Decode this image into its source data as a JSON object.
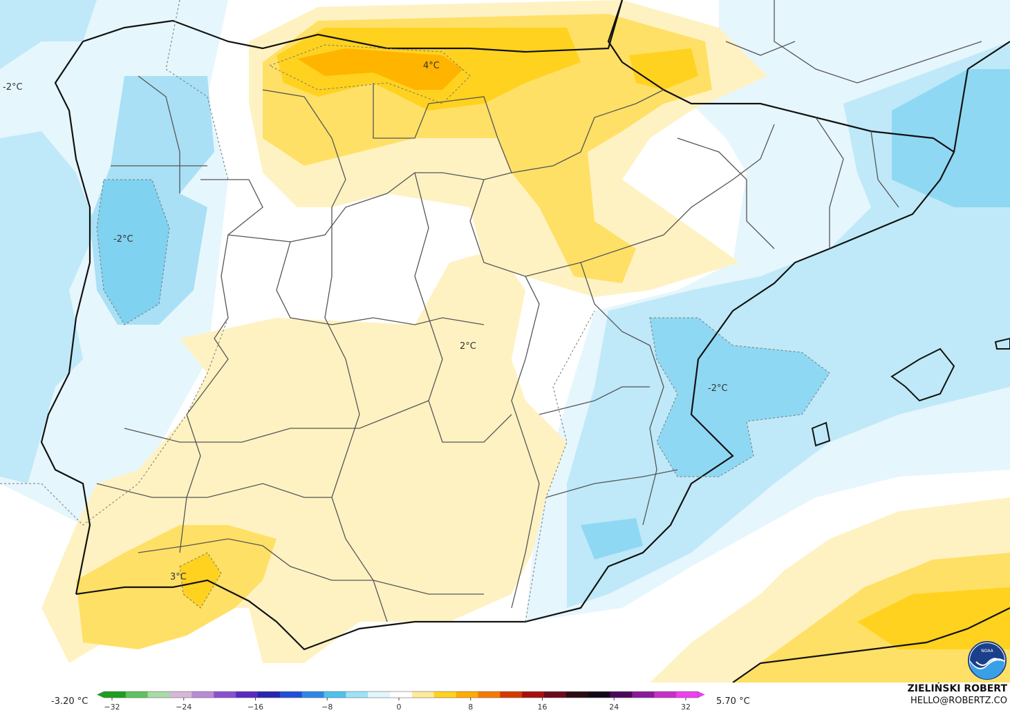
{
  "map": {
    "contour_labels": [
      "4°C",
      "-2°C",
      "-2°C",
      "-2°C",
      "2°C",
      "3°C"
    ]
  },
  "legend": {
    "min_value": "-3.20 °C",
    "max_value": "5.70 °C",
    "ticks": [
      "−32",
      "−24",
      "−16",
      "−8",
      "0",
      "8",
      "16",
      "24",
      "32"
    ],
    "colors": [
      "#1f9d1f",
      "#5ec25e",
      "#a8dba8",
      "#d6b8d6",
      "#b98ad6",
      "#8a4fd0",
      "#5a2ac0",
      "#2626b0",
      "#1f4ed8",
      "#2f86e8",
      "#4ec0ee",
      "#9ee2f6",
      "#e2f6fc",
      "#ffffff",
      "#ffeb99",
      "#ffd21f",
      "#ffac00",
      "#f57a00",
      "#d43a00",
      "#a80e0e",
      "#6b0a18",
      "#2a0a14",
      "#120818",
      "#4a0a5a",
      "#8a1a9a",
      "#c82ec8",
      "#ef3ef0"
    ]
  },
  "credit": {
    "name": "ZIELIŃSKI ROBERT",
    "email": "HELLO@ROBERTZ.CO"
  },
  "logo": {
    "name": "noaa-logo",
    "text": "NOAA"
  }
}
